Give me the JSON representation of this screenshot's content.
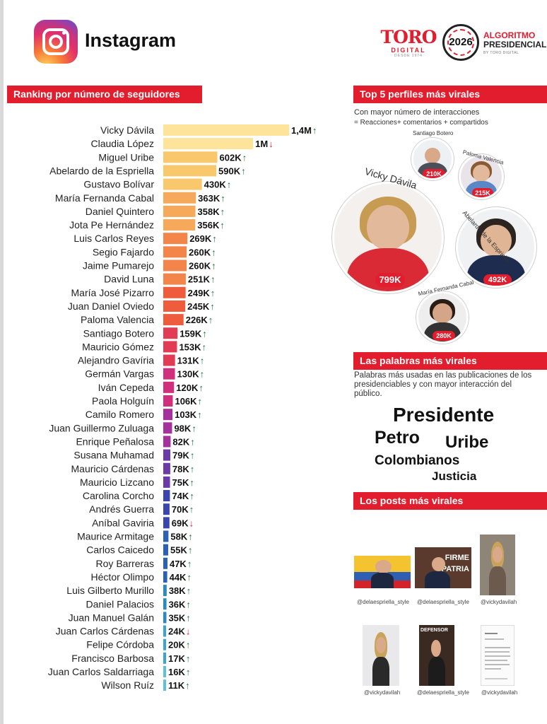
{
  "header": {
    "platform": "Instagram",
    "brand": {
      "toro": "TORO",
      "digital": "DIGITAL",
      "since": "DESDE 1974",
      "year": "2026",
      "algoritmo": "ALGORITMO",
      "presidencial": "PRESIDENCIAL",
      "by": "BY TORO DIGITAL"
    },
    "colors": {
      "accent": "#e21d2d",
      "up": "#1f7a3a",
      "down": "#e21d2d"
    }
  },
  "ranking": {
    "title": "Ranking por número de seguidores"
  },
  "chart_data": {
    "type": "bar",
    "orientation": "horizontal",
    "title": "Ranking por número de seguidores",
    "categories": [
      "Vicky Dávila",
      "Claudia López",
      "Miguel Uribe",
      "Abelardo de la Espriella",
      "Gustavo Bolívar",
      "María Fernanda Cabal",
      "Daniel Quintero",
      "Jota Pe Hernández",
      "Luis Carlos Reyes",
      "Segio Fajardo",
      "Jaime Pumarejo",
      "David Luna",
      "María José Pizarro",
      "Juan Daniel Oviedo",
      "Paloma Valencia",
      "Santiago Botero",
      "Mauricio Gómez",
      "Alejandro Gavíria",
      "Germán Vargas",
      "Iván Cepeda",
      "Paola Holguín",
      "Camilo Romero",
      "Juan Guillermo Zuluaga",
      "Enrique Peñalosa",
      "Susana Muhamad",
      "Mauricio Cárdenas",
      "Mauricio Lizcano",
      "Carolina Corcho",
      "Andrés Guerra",
      "Aníbal Gaviria",
      "Maurice Armitage",
      "Carlos Caicedo",
      "Roy Barreras",
      "Héctor Olimpo",
      "Luis Gilberto Murillo",
      "Daniel Palacios",
      "Juan Manuel Galán",
      "Juan Carlos Cárdenas",
      "Felipe Córdoba",
      "Francisco Barbosa",
      "Juan Carlos Saldarriaga",
      "Wilson Ruíz"
    ],
    "values": [
      1400000,
      1000000,
      602000,
      590000,
      430000,
      363000,
      358000,
      356000,
      269000,
      260000,
      260000,
      251000,
      249000,
      245000,
      226000,
      159000,
      153000,
      131000,
      130000,
      120000,
      106000,
      103000,
      98000,
      82000,
      79000,
      78000,
      75000,
      74000,
      70000,
      69000,
      58000,
      55000,
      47000,
      44000,
      38000,
      36000,
      35000,
      24000,
      20000,
      17000,
      16000,
      11000
    ],
    "value_labels": [
      "1,4M",
      "1M",
      "602K",
      "590K",
      "430K",
      "363K",
      "358K",
      "356K",
      "269K",
      "260K",
      "260K",
      "251K",
      "249K",
      "245K",
      "226K",
      "159K",
      "153K",
      "131K",
      "130K",
      "120K",
      "106K",
      "103K",
      "98K",
      "82K",
      "79K",
      "78K",
      "75K",
      "74K",
      "70K",
      "69K",
      "58K",
      "55K",
      "47K",
      "44K",
      "38K",
      "36K",
      "35K",
      "24K",
      "20K",
      "17K",
      "16K",
      "11K"
    ],
    "trend": [
      "up",
      "down",
      "up",
      "up",
      "up",
      "up",
      "up",
      "up",
      "up",
      "up",
      "up",
      "up",
      "up",
      "up",
      "up",
      "up",
      "up",
      "up",
      "up",
      "up",
      "up",
      "up",
      "up",
      "up",
      "up",
      "up",
      "up",
      "up",
      "up",
      "down",
      "up",
      "up",
      "up",
      "up",
      "up",
      "up",
      "up",
      "down",
      "up",
      "up",
      "up",
      "up"
    ],
    "color_scale": [
      "#fde49a",
      "#f9c86d",
      "#f6a95a",
      "#f3854b",
      "#ee5b3d",
      "#e23c55",
      "#cf2f7b",
      "#a5319c",
      "#6b3aa8",
      "#3a46ad",
      "#2a61b6",
      "#2a88c2",
      "#3aa6cc",
      "#5fc0d6"
    ],
    "xlim": [
      0,
      1400000
    ]
  },
  "viral": {
    "title": "Top 5 perfiles más virales",
    "note1": "Con mayor número de interacciones",
    "note2": "= Reacciones+ comentarios + compartidos",
    "profiles": [
      {
        "name": "Vicky Dávila",
        "value": "799K"
      },
      {
        "name": "Santiago Botero",
        "value": "210K"
      },
      {
        "name": "Paloma Valencia",
        "value": "215K"
      },
      {
        "name": "Abelardo de la Espriella",
        "value": "492K"
      },
      {
        "name": "María Fernanda Cabal",
        "value": "280K"
      }
    ]
  },
  "words": {
    "title": "Las palabras más virales",
    "note": "Palabras más usadas en las publicaciones de los presidenciables y con mayor interacción del público.",
    "list": [
      "Presidente",
      "Petro",
      "Uribe",
      "Colombianos",
      "Justicia"
    ]
  },
  "posts": {
    "title": "Los posts más virales",
    "items": [
      {
        "handle": "@delaespriella_style"
      },
      {
        "handle": "@delaespriella_style",
        "overlay1": "FIRME",
        "overlay2": "PATRIA"
      },
      {
        "handle": "@vickydavilah"
      },
      {
        "handle": "@vickydavilah"
      },
      {
        "handle": "@delaespriella_style",
        "overlay1": "DEFENSOR"
      },
      {
        "handle": "@vickydavilah"
      }
    ]
  }
}
